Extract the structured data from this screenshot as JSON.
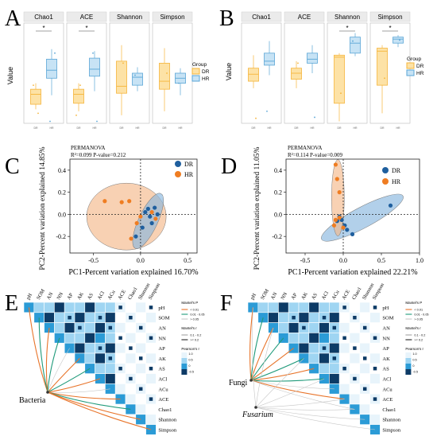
{
  "panels": {
    "A": {
      "letter": "A",
      "facets": [
        "Chao1",
        "ACE",
        "Shannon",
        "Simpson"
      ],
      "y_label": "Value",
      "legend_title": "Group",
      "legend_items": [
        "DR",
        "HR"
      ],
      "x_ticks": [
        "DR",
        "HR"
      ],
      "sig_marks": [
        "*",
        "*"
      ]
    },
    "B": {
      "letter": "B",
      "facets": [
        "Chao1",
        "ACE",
        "Shannon",
        "Simpson"
      ],
      "y_label": "Value",
      "legend_title": "Group",
      "legend_items": [
        "DR",
        "HR"
      ],
      "x_ticks": [
        "DR",
        "HR"
      ],
      "sig_marks": [
        "*",
        "*"
      ]
    },
    "C": {
      "letter": "C",
      "stat_title": "PERMANOVA",
      "stat_line": "R²=0.099  P-value=0.212",
      "y_label": "PC2-Percent variation explained 14.85%",
      "x_label": "PC1-Percent variation explained 16.70%",
      "legend_items": [
        "DR",
        "HR"
      ],
      "x_ticks": [
        "-0.5",
        "0.0",
        "0.5"
      ],
      "y_ticks": [
        "0.4",
        "0.2",
        "0.0",
        "-0.2"
      ]
    },
    "D": {
      "letter": "D",
      "stat_title": "PERMANOVA",
      "stat_line": "R²=0.114  P-value=0.009",
      "y_label": "PC2-Percent variation explained 11.05%",
      "x_label": "PC1-Percent variation explained 22.21%",
      "legend_items": [
        "DR",
        "HR"
      ],
      "x_ticks": [
        "-0.5",
        "0.0",
        "0.5",
        "1.0"
      ],
      "y_ticks": [
        "0.4",
        "0.2",
        "0.0",
        "-0.2"
      ]
    },
    "E": {
      "letter": "E",
      "variables": [
        "pH",
        "SOM",
        "AN",
        "NN",
        "AP",
        "AK",
        "AS",
        "ACl",
        "ACu",
        "ACE",
        "Chao1",
        "Shannon",
        "Simpson"
      ],
      "source_label": "Bacteria",
      "legend_mantel_p": "Mantel's P",
      "legend_p_items": [
        "< 0.01",
        "0.01 - 0.05",
        "> 0.05"
      ],
      "legend_mantel_r": "Mantel's r",
      "legend_r_items": [
        "0.1 - 0.2",
        ">= 0.2"
      ],
      "legend_pearson": "Pearson's r",
      "pearson_ticks": [
        "1.0",
        "0.5",
        "0",
        "-0.5"
      ]
    },
    "F": {
      "letter": "F",
      "variables": [
        "pH",
        "SOM",
        "AN",
        "NN",
        "AP",
        "AK",
        "AS",
        "ACl",
        "ACu",
        "ACE",
        "Chao1",
        "Shannon",
        "Simpson"
      ],
      "source_label_1": "Fungi",
      "source_label_2": "Fusarium",
      "legend_mantel_p": "Mantel's P",
      "legend_p_items": [
        "< 0.01",
        "0.01 - 0.05",
        "> 0.05"
      ],
      "legend_mantel_r": "Mantel's r",
      "legend_r_items": [
        "0.1 - 0.2",
        ">= 0.2"
      ],
      "legend_pearson": "Pearson's r",
      "pearson_ticks": [
        "1.0",
        "0.5",
        "0",
        "-0.5"
      ]
    }
  },
  "colors": {
    "dr": "#f5b53b",
    "dr_fill": "#fde2a6",
    "hr": "#5aa6d6",
    "hr_fill": "#c7e3f5",
    "pcoa_dr": "#1f5f9e",
    "pcoa_hr": "#ef7d22",
    "ellipse_dr": "#89b7de",
    "ellipse_hr": "#f5b88a",
    "strip": "#ebebeb",
    "heat_dark": "#0d3b66",
    "heat_mid": "#2b9bd6",
    "heat_light": "#9fd5f2",
    "line_orange": "#e8742a",
    "line_green": "#1f9a7a",
    "line_gray": "#c6c6c6"
  },
  "chart_data": [
    {
      "type": "scatter",
      "panel": "C",
      "x_label": "PC1-Percent variation explained 16.70%",
      "y_label": "PC2-Percent variation explained 14.85%",
      "xlim": [
        -0.75,
        0.6
      ],
      "ylim": [
        -0.35,
        0.5
      ],
      "series": [
        {
          "name": "DR",
          "points": [
            [
              0.05,
              0.02
            ],
            [
              0.1,
              -0.02
            ],
            [
              0.18,
              0.0
            ],
            [
              0.12,
              -0.08
            ],
            [
              0.02,
              -0.12
            ],
            [
              -0.05,
              -0.2
            ],
            [
              0.08,
              0.05
            ],
            [
              0.15,
              0.06
            ]
          ]
        },
        {
          "name": "HR",
          "points": [
            [
              -0.38,
              0.12
            ],
            [
              -0.2,
              0.11
            ],
            [
              -0.12,
              0.12
            ],
            [
              -0.04,
              -0.08
            ],
            [
              0.0,
              -0.02
            ],
            [
              -0.1,
              -0.22
            ],
            [
              0.12,
              0.02
            ],
            [
              0.16,
              -0.04
            ]
          ]
        }
      ]
    },
    {
      "type": "scatter",
      "panel": "D",
      "x_label": "PC1-Percent variation explained 22.21%",
      "y_label": "PC2-Percent variation explained 11.05%",
      "xlim": [
        -0.75,
        1.0
      ],
      "ylim": [
        -0.35,
        0.5
      ],
      "series": [
        {
          "name": "DR",
          "points": [
            [
              0.62,
              0.08
            ],
            [
              -0.02,
              -0.05
            ],
            [
              0.02,
              -0.1
            ],
            [
              -0.05,
              -0.02
            ],
            [
              0.12,
              -0.18
            ],
            [
              0.05,
              -0.14
            ],
            [
              -0.08,
              -0.06
            ]
          ]
        },
        {
          "name": "HR",
          "points": [
            [
              -0.1,
              0.45
            ],
            [
              -0.08,
              0.32
            ],
            [
              -0.05,
              0.2
            ],
            [
              -0.1,
              -0.05
            ],
            [
              -0.05,
              -0.03
            ],
            [
              -0.12,
              -0.1
            ],
            [
              0.0,
              -0.12
            ]
          ]
        }
      ]
    }
  ]
}
